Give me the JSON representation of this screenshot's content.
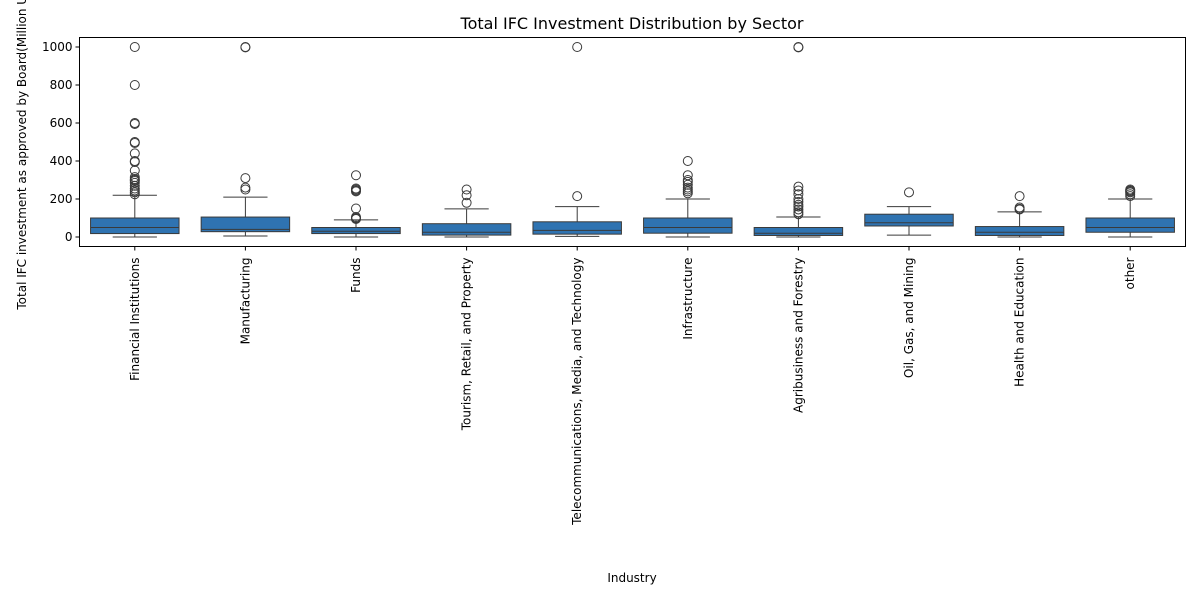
{
  "chart_data": {
    "type": "boxplot",
    "title": "Total IFC Investment Distribution by Sector",
    "xlabel": "Industry",
    "ylabel": "Total IFC investment as approved by Board(Million USD)",
    "ylim": [
      -50,
      1050
    ],
    "yticks": [
      0,
      200,
      400,
      600,
      800,
      1000
    ],
    "grid": false,
    "box_color": "#2f73b1",
    "categories": [
      "Financial Institutions",
      "Manufacturing",
      "Funds",
      "Tourism, Retail, and Property",
      "Telecommunications, Media, and Technology",
      "Infrastructure",
      "Agribusiness and Forestry",
      "Oil, Gas, and Mining",
      "Health and Education",
      "other"
    ],
    "boxes": [
      {
        "whisker_low": 0,
        "q1": 18,
        "median": 50,
        "q3": 100,
        "whisker_high": 220,
        "outliers": [
          1000,
          800,
          600,
          595,
          500,
          495,
          440,
          400,
          395,
          350,
          315,
          305,
          300,
          295,
          285,
          270,
          255,
          245,
          235,
          225
        ]
      },
      {
        "whisker_low": 5,
        "q1": 28,
        "median": 40,
        "q3": 105,
        "whisker_high": 210,
        "outliers": [
          1000,
          998,
          310,
          260,
          250
        ]
      },
      {
        "whisker_low": 0,
        "q1": 18,
        "median": 30,
        "q3": 50,
        "whisker_high": 90,
        "outliers": [
          325,
          255,
          250,
          245,
          240,
          150,
          105,
          100,
          98,
          95
        ]
      },
      {
        "whisker_low": 0,
        "q1": 10,
        "median": 25,
        "q3": 70,
        "whisker_high": 148,
        "outliers": [
          250,
          220,
          180
        ]
      },
      {
        "whisker_low": 3,
        "q1": 15,
        "median": 35,
        "q3": 80,
        "whisker_high": 160,
        "outliers": [
          1000,
          215
        ]
      },
      {
        "whisker_low": 0,
        "q1": 20,
        "median": 50,
        "q3": 100,
        "whisker_high": 200,
        "outliers": [
          400,
          325,
          300,
          290,
          275,
          260,
          250,
          240,
          230
        ]
      },
      {
        "whisker_low": 0,
        "q1": 8,
        "median": 20,
        "q3": 50,
        "whisker_high": 105,
        "outliers": [
          1000,
          998,
          265,
          245,
          225,
          200,
          185,
          170,
          160,
          145,
          130,
          120
        ]
      },
      {
        "whisker_low": 10,
        "q1": 58,
        "median": 75,
        "q3": 120,
        "whisker_high": 160,
        "outliers": [
          235
        ]
      },
      {
        "whisker_low": 0,
        "q1": 8,
        "median": 25,
        "q3": 55,
        "whisker_high": 132,
        "outliers": [
          215,
          155,
          148,
          145
        ]
      },
      {
        "whisker_low": 0,
        "q1": 25,
        "median": 50,
        "q3": 100,
        "whisker_high": 200,
        "outliers": [
          250,
          245,
          240,
          235,
          225,
          215
        ]
      }
    ]
  }
}
